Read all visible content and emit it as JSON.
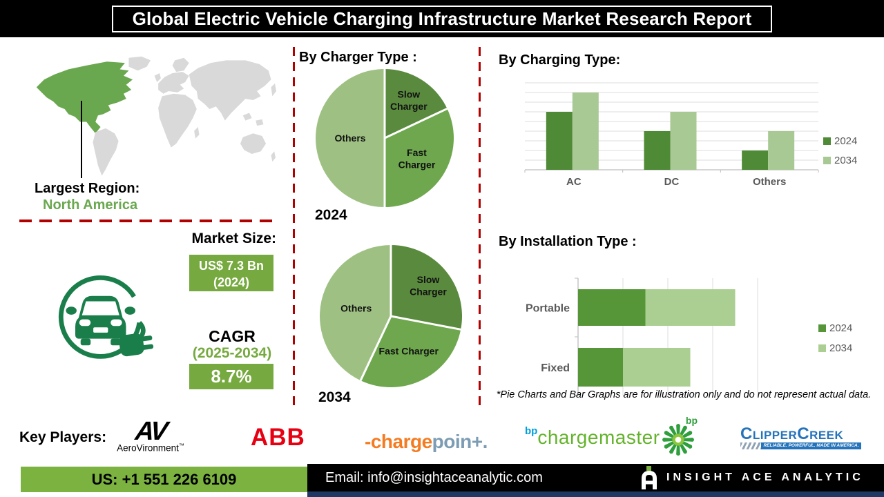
{
  "title": "Global Electric Vehicle Charging Infrastructure Market Research Report",
  "map": {
    "label": "Largest Region:",
    "value": "North America",
    "highlight_color": "#6aa84f",
    "land_color": "#d9d9d9"
  },
  "market": {
    "heading": "Market Size:",
    "size_value": "US$ 7.3 Bn",
    "size_year": "(2024)",
    "cagr_label": "CAGR",
    "cagr_period": "(2025-2034)",
    "cagr_value": "8.7%"
  },
  "colors": {
    "divider_red": "#b00000",
    "box_green": "#76a93f",
    "footer_green": "#7bb240",
    "icon_green": "#1a7e4b",
    "chart_text_gray": "#595959"
  },
  "chart_data": [
    {
      "id": "charger_2024",
      "type": "pie",
      "title": "By Charger Type :",
      "year_label": "2024",
      "labels": [
        "Slow Charger",
        "Fast Charger",
        "Others"
      ],
      "label_lines": [
        [
          "Slow",
          "Charger"
        ],
        [
          "Fast",
          "Charger"
        ],
        [
          "Others"
        ]
      ],
      "values": [
        18,
        32,
        50
      ],
      "colors": [
        "#5a8a3e",
        "#6ea74d",
        "#9ec183"
      ],
      "note": "illustrative percentages estimated from figure"
    },
    {
      "id": "charger_2034",
      "type": "pie",
      "year_label": "2034",
      "labels": [
        "Slow Charger",
        "Fast Charger",
        "Others"
      ],
      "label_lines": [
        [
          "Slow",
          "Charger"
        ],
        [
          "Fast Charger"
        ],
        [
          "Others"
        ]
      ],
      "values": [
        28,
        29,
        43
      ],
      "colors": [
        "#5a8a3e",
        "#6ea74d",
        "#9ec183"
      ],
      "note": "illustrative percentages estimated from figure"
    },
    {
      "id": "charging",
      "type": "bar",
      "title": "By Charging Type:",
      "categories": [
        "AC",
        "DC",
        "Others"
      ],
      "series": [
        {
          "name": "2024",
          "values": [
            6,
            4,
            2
          ],
          "color": "#4f8a36"
        },
        {
          "name": "2034",
          "values": [
            8,
            6,
            4
          ],
          "color": "#a8c993"
        }
      ],
      "ylim": [
        0,
        9
      ],
      "grid": true,
      "legend_position": "right",
      "note": "illustrative values in gridline units"
    },
    {
      "id": "installation",
      "type": "bar",
      "orientation": "horizontal-stacked",
      "title": "By Installation Type :",
      "categories": [
        "Portable",
        "Fixed"
      ],
      "series": [
        {
          "name": "2024",
          "values": [
            1.5,
            1.0
          ],
          "color": "#579539"
        },
        {
          "name": "2034",
          "values": [
            2.0,
            1.5
          ],
          "color": "#abce92"
        }
      ],
      "xlim": [
        0,
        4
      ],
      "grid": true,
      "legend_position": "right",
      "note": "illustrative values in gridline units"
    }
  ],
  "disclaimer": "*Pie Charts and Bar Graphs are for illustration only and do not represent actual data.",
  "key_players": {
    "label": "Key Players:",
    "aerovironment": {
      "main": "AV",
      "sub": "AeroVironment",
      "tm": "™"
    },
    "abb": {
      "text": "ABB"
    },
    "chargepoint": {
      "orange": "-charge",
      "blue": "poin+."
    },
    "bp_chargemaster": {
      "bp": "bp",
      "name": "chargemaster"
    },
    "bp_helios": {
      "bp": "bp"
    },
    "clippercreek": {
      "name": "ClipperCreek",
      "tagline": "RELIABLE. POWERFUL. MADE IN AMERICA."
    }
  },
  "footer": {
    "phone": "US: +1 551 226 6109",
    "email": "Email: info@insightaceanalytic.com",
    "brand": "INSIGHT ACE ANALYTIC"
  }
}
